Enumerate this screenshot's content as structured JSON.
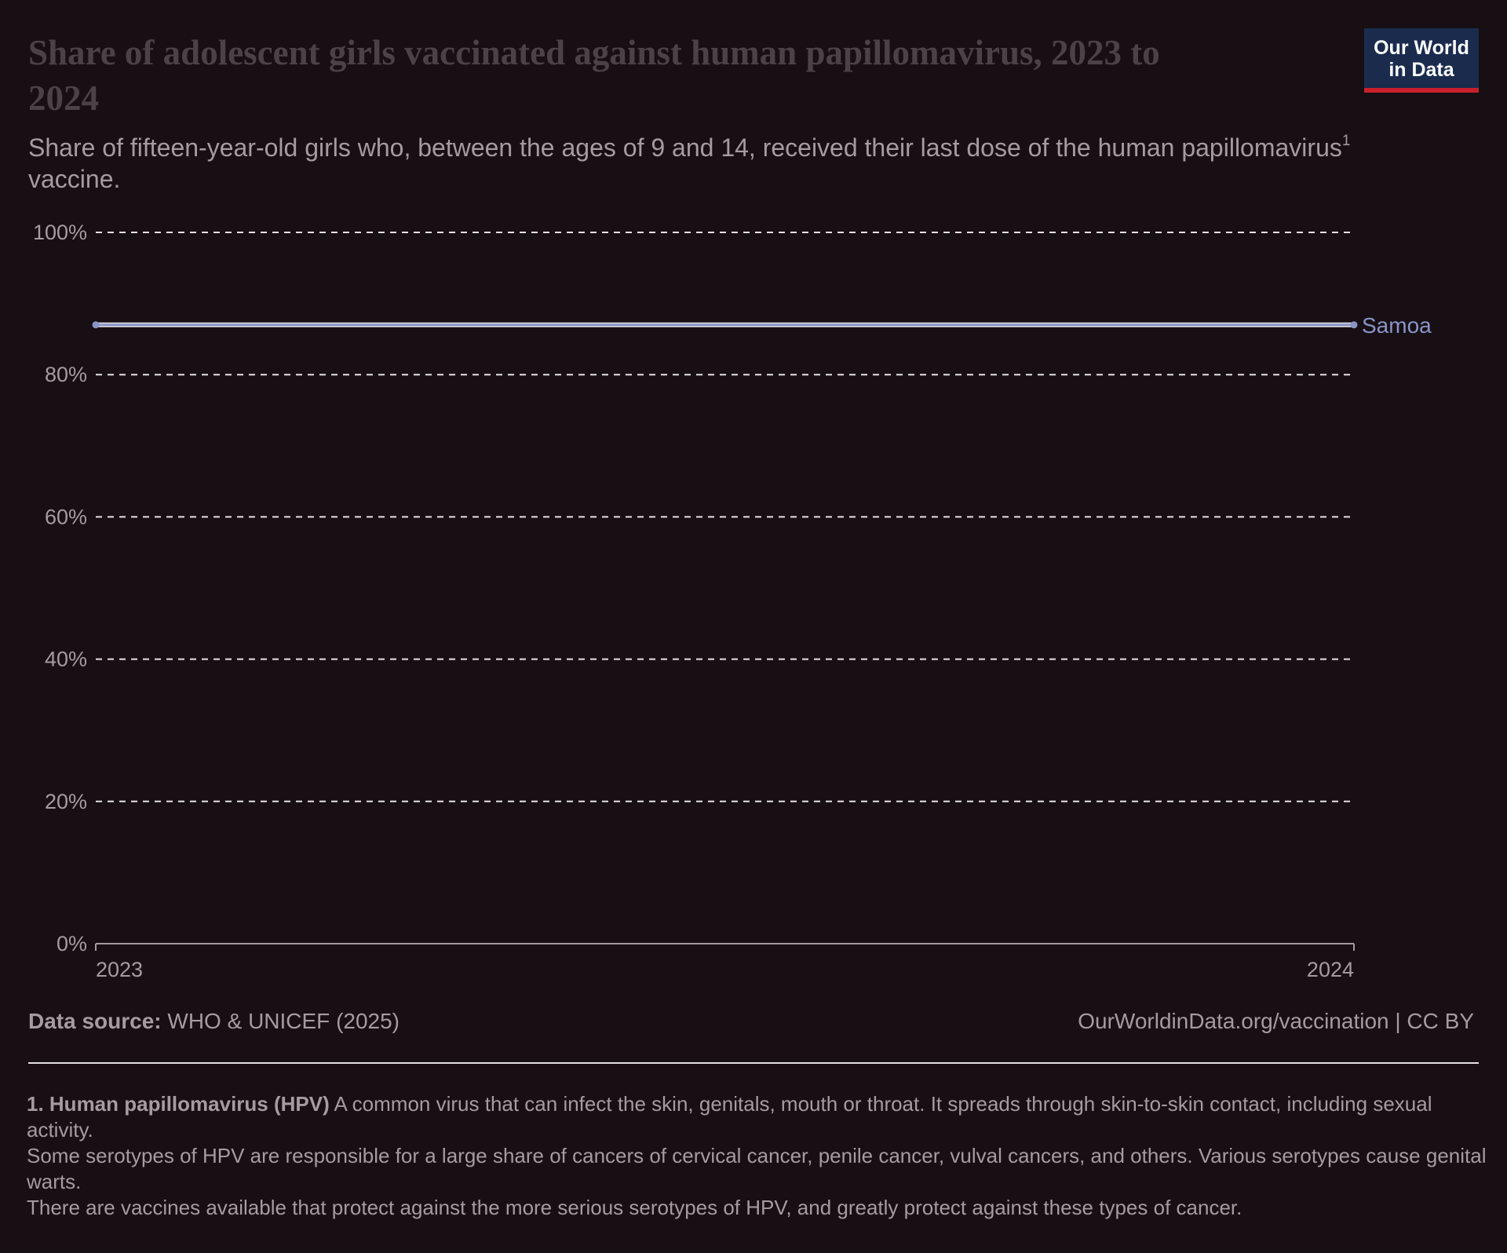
{
  "header": {
    "title": "Share of adolescent girls vaccinated against human papillomavirus, 2023 to 2024",
    "subtitle": "Share of fifteen-year-old girls who, between the ages of 9 and 14, received their last dose of the human papillomavirus",
    "subtitle_sup": "1",
    "subtitle_end": "vaccine."
  },
  "logo": {
    "line1": "Our World",
    "line2": "in Data"
  },
  "chart_data": {
    "type": "line",
    "title": "Share of adolescent girls vaccinated against human papillomavirus, 2023 to 2024",
    "x": [
      2023,
      2024
    ],
    "x_tick_labels": [
      "2023",
      "2024"
    ],
    "y_tick_labels": [
      "0%",
      "20%",
      "40%",
      "60%",
      "80%",
      "100%"
    ],
    "y_ticks": [
      0,
      20,
      40,
      60,
      80,
      100
    ],
    "ylim": [
      0,
      100
    ],
    "grid": "horizontal dashed",
    "series": [
      {
        "name": "Samoa",
        "values": [
          87,
          87
        ],
        "color": "#8a94c8"
      }
    ]
  },
  "footer": {
    "source_label": "Data source:",
    "source_text": "WHO & UNICEF (2025)",
    "url": "OurWorldinData.org/vaccination | CC BY"
  },
  "notes": {
    "n1_label": "1. Human papillomavirus (HPV)",
    "n1_text": "A common virus that can infect the skin, genitals, mouth or throat. It spreads through skin-to-skin contact, including sexual activity.",
    "n2_text": "Some serotypes of HPV are responsible for a large share of cancers of cervical cancer, penile cancer, vulval cancers, and others. Various serotypes cause genital warts.",
    "n3_text": "There are vaccines available that protect against the more serious serotypes of HPV, and greatly protect against these types of cancer."
  }
}
